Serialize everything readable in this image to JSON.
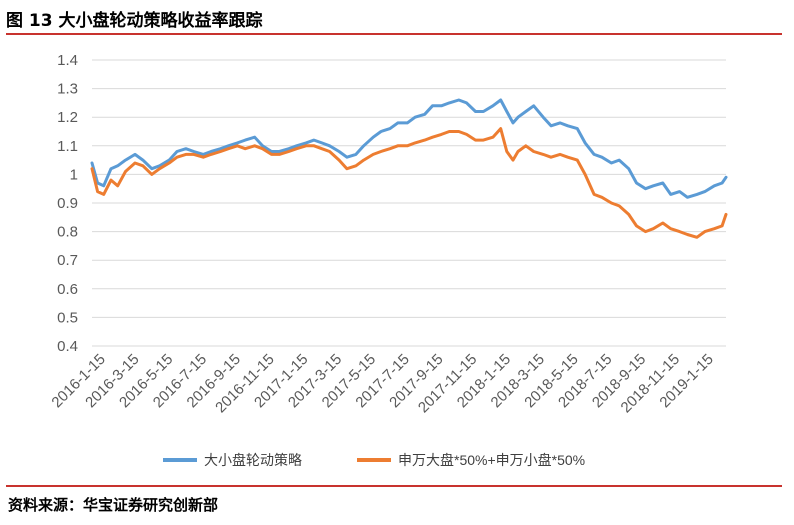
{
  "figure": {
    "title": "图 13   大小盘轮动策略收益率跟踪",
    "source": "资料来源：华宝证券研究创新部"
  },
  "chart_data": {
    "type": "line",
    "ylim": [
      0.4,
      1.4
    ],
    "yticks": [
      "1.4",
      "1.3",
      "1.2",
      "1.1",
      "1",
      "0.9",
      "0.8",
      "0.7",
      "0.6",
      "0.5",
      "0.4"
    ],
    "ytick_values": [
      1.4,
      1.3,
      1.2,
      1.1,
      1.0,
      0.9,
      0.8,
      0.7,
      0.6,
      0.5,
      0.4
    ],
    "grid": true,
    "legend_position": "bottom",
    "xticks": [
      "2016-1-15",
      "2016-3-15",
      "2016-5-15",
      "2016-7-15",
      "2016-9-15",
      "2016-11-15",
      "2017-1-15",
      "2017-3-15",
      "2017-5-15",
      "2017-7-15",
      "2017-9-15",
      "2017-11-15",
      "2018-1-15",
      "2018-3-15",
      "2018-5-15",
      "2018-7-15",
      "2018-9-15",
      "2018-11-15",
      "2019-1-15"
    ],
    "x": [
      "2016-01-15",
      "2016-01-25",
      "2016-02-05",
      "2016-02-18",
      "2016-03-01",
      "2016-03-15",
      "2016-04-01",
      "2016-04-15",
      "2016-05-01",
      "2016-05-15",
      "2016-06-01",
      "2016-06-15",
      "2016-07-01",
      "2016-07-15",
      "2016-08-01",
      "2016-08-15",
      "2016-09-01",
      "2016-09-15",
      "2016-10-01",
      "2016-10-15",
      "2016-11-01",
      "2016-11-15",
      "2016-12-01",
      "2016-12-15",
      "2017-01-01",
      "2017-01-15",
      "2017-02-01",
      "2017-02-15",
      "2017-03-01",
      "2017-03-15",
      "2017-04-01",
      "2017-04-15",
      "2017-05-01",
      "2017-05-15",
      "2017-06-01",
      "2017-06-15",
      "2017-07-01",
      "2017-07-15",
      "2017-08-01",
      "2017-08-15",
      "2017-09-01",
      "2017-09-15",
      "2017-10-01",
      "2017-10-15",
      "2017-11-01",
      "2017-11-15",
      "2017-12-01",
      "2017-12-15",
      "2018-01-01",
      "2018-01-15",
      "2018-01-26",
      "2018-02-06",
      "2018-02-15",
      "2018-03-01",
      "2018-03-15",
      "2018-04-01",
      "2018-04-15",
      "2018-05-01",
      "2018-05-15",
      "2018-06-01",
      "2018-06-15",
      "2018-07-01",
      "2018-07-15",
      "2018-08-01",
      "2018-08-15",
      "2018-09-01",
      "2018-09-15",
      "2018-10-01",
      "2018-10-15",
      "2018-11-01",
      "2018-11-15",
      "2018-12-01",
      "2018-12-15",
      "2019-01-01",
      "2019-01-15",
      "2019-02-01",
      "2019-02-15",
      "2019-02-22"
    ],
    "series": [
      {
        "name": "大小盘轮动策略",
        "color": "#5b9bd5",
        "values": [
          1.04,
          0.97,
          0.96,
          1.02,
          1.03,
          1.05,
          1.07,
          1.05,
          1.02,
          1.03,
          1.05,
          1.08,
          1.09,
          1.08,
          1.07,
          1.08,
          1.09,
          1.1,
          1.11,
          1.12,
          1.13,
          1.1,
          1.08,
          1.08,
          1.09,
          1.1,
          1.11,
          1.12,
          1.11,
          1.1,
          1.08,
          1.06,
          1.07,
          1.1,
          1.13,
          1.15,
          1.16,
          1.18,
          1.18,
          1.2,
          1.21,
          1.24,
          1.24,
          1.25,
          1.26,
          1.25,
          1.22,
          1.22,
          1.24,
          1.26,
          1.22,
          1.18,
          1.2,
          1.22,
          1.24,
          1.2,
          1.17,
          1.18,
          1.17,
          1.16,
          1.11,
          1.07,
          1.06,
          1.04,
          1.05,
          1.02,
          0.97,
          0.95,
          0.96,
          0.97,
          0.93,
          0.94,
          0.92,
          0.93,
          0.94,
          0.96,
          0.97,
          0.99
        ]
      },
      {
        "name": "申万大盘*50%+申万小盘*50%",
        "color": "#ed7d31",
        "values": [
          1.02,
          0.94,
          0.93,
          0.98,
          0.96,
          1.01,
          1.04,
          1.03,
          1.0,
          1.02,
          1.04,
          1.06,
          1.07,
          1.07,
          1.06,
          1.07,
          1.08,
          1.09,
          1.1,
          1.09,
          1.1,
          1.09,
          1.07,
          1.07,
          1.08,
          1.09,
          1.1,
          1.1,
          1.09,
          1.08,
          1.05,
          1.02,
          1.03,
          1.05,
          1.07,
          1.08,
          1.09,
          1.1,
          1.1,
          1.11,
          1.12,
          1.13,
          1.14,
          1.15,
          1.15,
          1.14,
          1.12,
          1.12,
          1.13,
          1.16,
          1.08,
          1.05,
          1.08,
          1.1,
          1.08,
          1.07,
          1.06,
          1.07,
          1.06,
          1.05,
          1.0,
          0.93,
          0.92,
          0.9,
          0.89,
          0.86,
          0.82,
          0.8,
          0.81,
          0.83,
          0.81,
          0.8,
          0.79,
          0.78,
          0.8,
          0.81,
          0.82,
          0.86
        ]
      }
    ]
  }
}
